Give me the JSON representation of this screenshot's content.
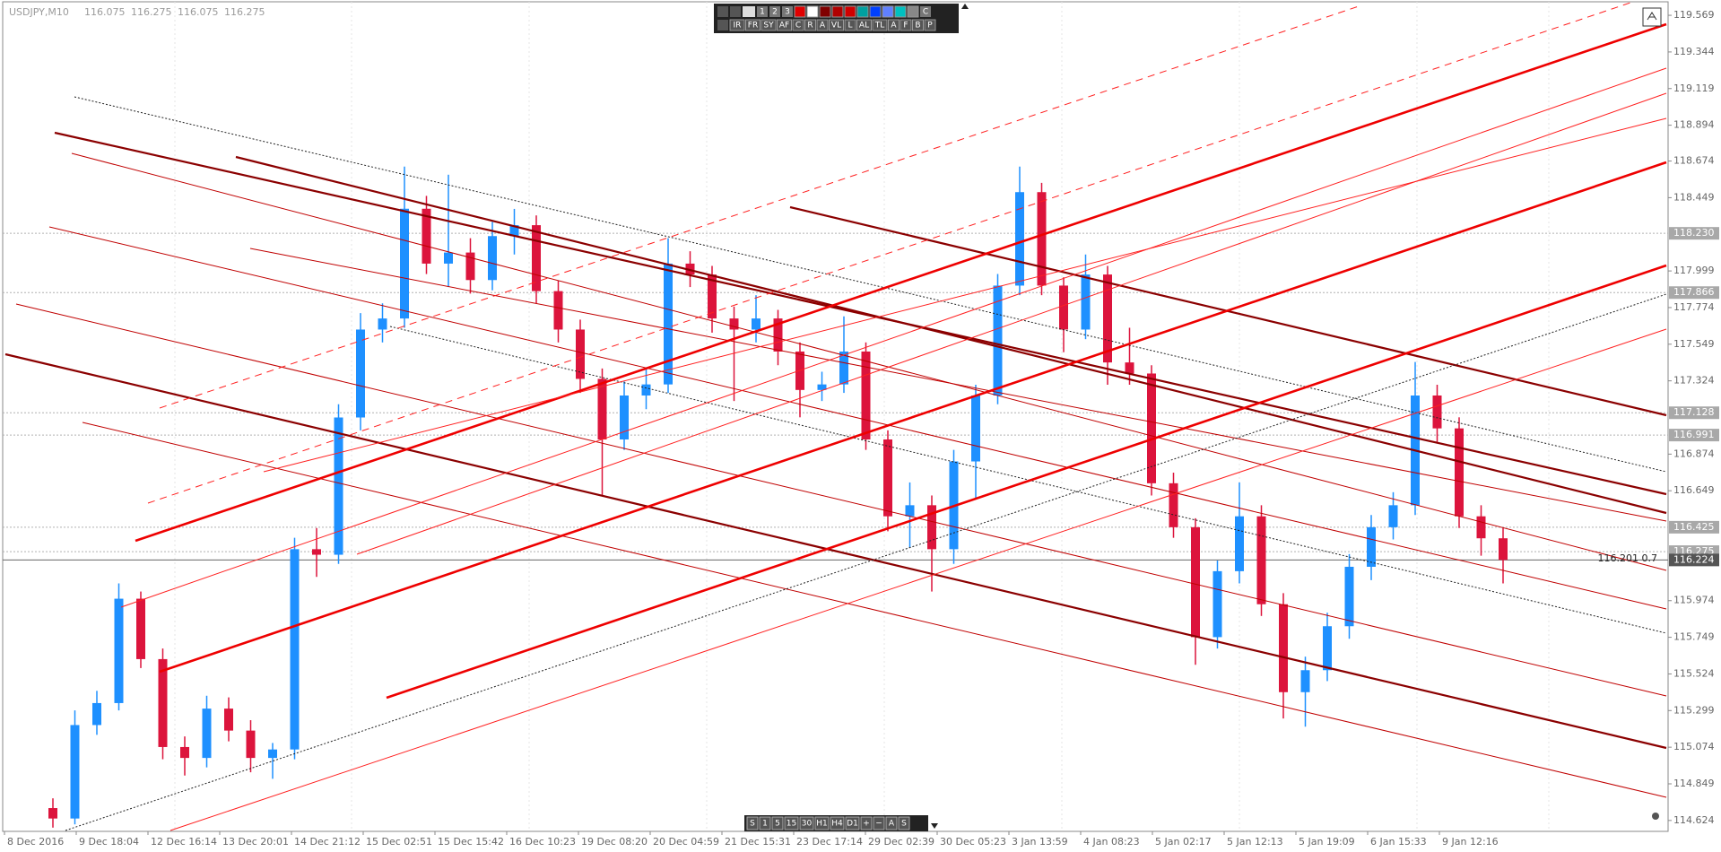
{
  "chart_data": {
    "type": "candlestick",
    "title": "USDJPY,M10",
    "header_ohlc": [
      116.075,
      116.275,
      116.075,
      116.275
    ],
    "annotation": "116.201 0.7",
    "bull_color": "#1e90ff",
    "bear_color": "#dc143c",
    "ylim": [
      114.557,
      119.663
    ],
    "yticks": [
      119.569,
      119.344,
      119.119,
      118.894,
      118.674,
      118.449,
      117.999,
      117.774,
      117.549,
      117.324,
      116.874,
      116.649,
      115.974,
      115.749,
      115.524,
      115.299,
      115.074,
      114.849,
      114.624
    ],
    "levels": [
      {
        "value": 118.23,
        "label": "118.230"
      },
      117.866,
      117.128,
      116.991,
      116.425,
      116.275,
      116.224
    ],
    "x_labels": [
      "8 Dec 2016",
      "9 Dec 18:04",
      "12 Dec 16:14",
      "13 Dec 20:01",
      "14 Dec 21:12",
      "15 Dec 02:51",
      "15 Dec 15:42",
      "16 Dec 10:23",
      "19 Dec 08:20",
      "20 Dec 04:59",
      "21 Dec 15:31",
      "23 Dec 17:14",
      "29 Dec 02:39",
      "30 Dec 05:23",
      "3 Jan 13:59",
      "4 Jan 08:23",
      "5 Jan 02:17",
      "5 Jan 12:13",
      "5 Jan 19:09",
      "6 Jan 15:33",
      "9 Jan 12:16"
    ],
    "candles": [
      [
        114.7,
        114.76,
        114.58,
        114.636
      ],
      [
        114.636,
        115.3,
        114.6,
        115.21
      ],
      [
        115.21,
        115.42,
        115.15,
        115.345
      ],
      [
        115.345,
        116.08,
        115.3,
        115.986
      ],
      [
        115.986,
        116.03,
        115.56,
        115.615
      ],
      [
        115.615,
        115.68,
        115.0,
        115.075
      ],
      [
        115.075,
        115.14,
        114.9,
        115.008
      ],
      [
        115.008,
        115.39,
        114.95,
        115.311
      ],
      [
        115.311,
        115.38,
        115.11,
        115.176
      ],
      [
        115.176,
        115.24,
        114.92,
        115.008
      ],
      [
        115.008,
        115.1,
        114.88,
        115.06
      ],
      [
        115.06,
        116.36,
        115.0,
        116.29
      ],
      [
        116.29,
        116.42,
        116.12,
        116.256
      ],
      [
        116.256,
        117.18,
        116.2,
        117.099
      ],
      [
        117.099,
        117.74,
        117.02,
        117.639
      ],
      [
        117.639,
        117.8,
        117.56,
        117.707
      ],
      [
        117.707,
        118.64,
        117.65,
        118.381
      ],
      [
        118.381,
        118.46,
        117.98,
        118.044
      ],
      [
        118.044,
        118.59,
        117.9,
        118.112
      ],
      [
        118.112,
        118.2,
        117.86,
        117.943
      ],
      [
        117.943,
        118.3,
        117.88,
        118.213
      ],
      [
        118.213,
        118.38,
        118.1,
        118.28
      ],
      [
        118.28,
        118.34,
        117.8,
        117.875
      ],
      [
        117.875,
        117.94,
        117.56,
        117.639
      ],
      [
        117.639,
        117.7,
        117.25,
        117.336
      ],
      [
        117.336,
        117.4,
        116.62,
        116.964
      ],
      [
        116.964,
        117.32,
        116.9,
        117.234
      ],
      [
        117.234,
        117.4,
        117.15,
        117.302
      ],
      [
        117.302,
        118.2,
        117.25,
        118.044
      ],
      [
        118.044,
        118.12,
        117.9,
        117.977
      ],
      [
        117.977,
        118.03,
        117.62,
        117.707
      ],
      [
        117.707,
        117.78,
        117.2,
        117.639
      ],
      [
        117.639,
        117.85,
        117.56,
        117.707
      ],
      [
        117.707,
        117.76,
        117.42,
        117.504
      ],
      [
        117.504,
        117.56,
        117.1,
        117.268
      ],
      [
        117.268,
        117.38,
        117.2,
        117.302
      ],
      [
        117.302,
        117.72,
        117.25,
        117.504
      ],
      [
        117.504,
        117.56,
        116.9,
        116.964
      ],
      [
        116.964,
        117.02,
        116.4,
        116.492
      ],
      [
        116.492,
        116.7,
        116.3,
        116.56
      ],
      [
        116.56,
        116.62,
        116.03,
        116.29
      ],
      [
        116.29,
        116.9,
        116.2,
        116.829
      ],
      [
        116.829,
        117.3,
        116.6,
        117.234
      ],
      [
        117.234,
        117.98,
        117.18,
        117.909
      ],
      [
        117.909,
        118.64,
        117.85,
        118.483
      ],
      [
        118.483,
        118.54,
        117.85,
        117.909
      ],
      [
        117.909,
        117.96,
        117.5,
        117.639
      ],
      [
        117.639,
        118.1,
        117.58,
        117.977
      ],
      [
        117.977,
        118.03,
        117.3,
        117.437
      ],
      [
        117.437,
        117.65,
        117.3,
        117.369
      ],
      [
        117.369,
        117.42,
        116.62,
        116.695
      ],
      [
        116.695,
        116.76,
        116.36,
        116.425
      ],
      [
        116.425,
        116.48,
        115.58,
        115.75
      ],
      [
        115.75,
        116.22,
        115.68,
        116.155
      ],
      [
        116.155,
        116.7,
        116.08,
        116.492
      ],
      [
        116.492,
        116.56,
        115.88,
        115.952
      ],
      [
        115.952,
        116.02,
        115.25,
        115.412
      ],
      [
        115.412,
        115.63,
        115.2,
        115.547
      ],
      [
        115.547,
        115.9,
        115.48,
        115.817
      ],
      [
        115.817,
        116.26,
        115.74,
        116.182
      ],
      [
        116.182,
        116.5,
        116.1,
        116.425
      ],
      [
        116.425,
        116.64,
        116.35,
        116.56
      ],
      [
        116.56,
        117.44,
        116.5,
        117.234
      ],
      [
        117.234,
        117.3,
        116.95,
        117.032
      ],
      [
        117.032,
        117.1,
        116.42,
        116.492
      ],
      [
        116.492,
        116.56,
        116.25,
        116.357
      ],
      [
        116.357,
        116.42,
        116.08,
        116.224
      ]
    ],
    "toolbar_top": [
      "1",
      "2",
      "3",
      "C"
    ],
    "toolbar_tools": [
      "IR",
      "FR",
      "SY",
      "AF",
      "C",
      "R",
      "A",
      "VL",
      "L",
      "AL",
      "TL",
      "A",
      "F",
      "B",
      "P"
    ],
    "toolbar_timeframes": [
      "S",
      "1",
      "5",
      "15",
      "30",
      "H1",
      "H4",
      "D1",
      "+",
      "−",
      "A",
      "S"
    ]
  }
}
